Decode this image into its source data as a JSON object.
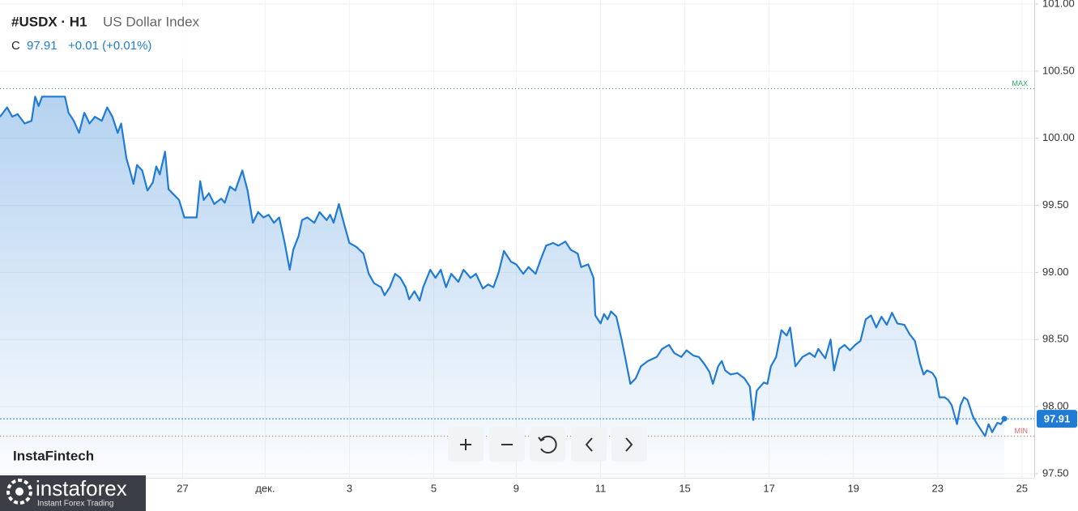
{
  "chart_data": {
    "type": "area",
    "symbol": "#USDX · H1",
    "title": "US Dollar Index",
    "close_label": "C",
    "close": 97.91,
    "change": "+0.01 (+0.01%)",
    "max_line": {
      "value": 100.37,
      "label": "MAX"
    },
    "min_line": {
      "value": 97.78,
      "label": "MIN"
    },
    "watermark": "InstaFintech",
    "logo": {
      "name": "instaforex",
      "tagline": "Instant Forex Trading"
    },
    "color": "#1f7bd3",
    "grid": true,
    "xlim": [
      0,
      589
    ],
    "ylim": [
      97.47,
      101.03
    ],
    "yticks": [
      {
        "value": 97.5,
        "label": "97.50"
      },
      {
        "value": 98,
        "label": "98.00"
      },
      {
        "value": 98.5,
        "label": "98.50"
      },
      {
        "value": 99,
        "label": "99.00"
      },
      {
        "value": 99.5,
        "label": "99.50"
      },
      {
        "value": 100,
        "label": "100.00"
      },
      {
        "value": 100.5,
        "label": "100.50"
      },
      {
        "value": 101,
        "label": "101.00"
      }
    ],
    "xticks": [
      {
        "value": 104,
        "label": "27"
      },
      {
        "value": 151,
        "label": "дек."
      },
      {
        "value": 199,
        "label": "3"
      },
      {
        "value": 247,
        "label": "5"
      },
      {
        "value": 294,
        "label": "9"
      },
      {
        "value": 342,
        "label": "11"
      },
      {
        "value": 390,
        "label": "15"
      },
      {
        "value": 438,
        "label": "17"
      },
      {
        "value": 486,
        "label": "19"
      },
      {
        "value": 534,
        "label": "23"
      },
      {
        "value": 582,
        "label": "25"
      }
    ],
    "x": [
      0,
      4,
      7,
      10,
      14,
      18,
      20,
      22,
      24,
      37,
      39,
      42,
      45,
      48,
      51,
      54,
      58,
      61,
      64,
      67,
      69,
      72,
      74,
      76,
      78,
      81,
      84,
      87,
      89,
      91,
      94,
      96,
      99,
      102,
      105,
      112,
      114,
      116,
      119,
      122,
      126,
      128,
      131,
      134,
      138,
      141,
      144,
      147,
      150,
      153,
      156,
      159,
      162,
      165,
      167,
      170,
      172,
      175,
      179,
      182,
      186,
      188,
      190,
      193,
      196,
      199,
      203,
      207,
      210,
      213,
      217,
      219,
      222,
      225,
      228,
      231,
      233,
      236,
      239,
      241,
      245,
      248,
      251,
      254,
      257,
      261,
      264,
      268,
      271,
      275,
      278,
      281,
      284,
      287,
      291,
      294,
      298,
      301,
      305,
      308,
      311,
      315,
      318,
      322,
      325,
      329,
      331,
      335,
      338,
      339,
      342,
      344,
      346,
      348,
      351,
      354,
      356,
      359,
      362,
      365,
      369,
      374,
      377,
      381,
      384,
      388,
      391,
      395,
      398,
      401,
      404,
      406,
      409,
      411,
      413,
      416,
      420,
      424,
      427,
      429,
      431,
      435,
      437,
      439,
      442,
      445,
      448,
      450,
      453,
      457,
      461,
      464,
      466,
      470,
      473,
      475,
      478,
      481,
      484,
      487,
      490,
      493,
      496,
      499,
      502,
      505,
      508,
      511,
      515,
      518,
      521,
      524,
      526,
      528,
      531,
      533,
      535,
      538,
      540,
      542,
      545,
      547,
      549,
      551,
      554,
      556,
      558,
      561,
      563,
      565,
      568,
      570,
      572
    ],
    "series": [
      {
        "name": "#USDX",
        "values": [
          100.16,
          100.23,
          100.16,
          100.18,
          100.11,
          100.13,
          100.31,
          100.24,
          100.31,
          100.31,
          100.19,
          100.13,
          100.04,
          100.19,
          100.11,
          100.16,
          100.13,
          100.23,
          100.16,
          100.04,
          100.11,
          99.85,
          99.76,
          99.66,
          99.8,
          99.76,
          99.61,
          99.67,
          99.79,
          99.73,
          99.9,
          99.62,
          99.58,
          99.54,
          99.41,
          99.41,
          99.68,
          99.54,
          99.59,
          99.51,
          99.55,
          99.52,
          99.64,
          99.61,
          99.76,
          99.61,
          99.37,
          99.45,
          99.41,
          99.43,
          99.37,
          99.41,
          99.23,
          99.02,
          99.17,
          99.27,
          99.39,
          99.41,
          99.37,
          99.45,
          99.39,
          99.43,
          99.37,
          99.51,
          99.36,
          99.22,
          99.19,
          99.14,
          98.99,
          98.92,
          98.89,
          98.83,
          98.89,
          98.99,
          98.96,
          98.89,
          98.8,
          98.86,
          98.79,
          98.89,
          99.02,
          98.96,
          99.02,
          98.89,
          98.99,
          98.93,
          99.02,
          98.96,
          98.99,
          98.88,
          98.91,
          98.89,
          99.0,
          99.16,
          99.08,
          99.06,
          98.99,
          99.04,
          98.99,
          99.1,
          99.2,
          99.22,
          99.2,
          99.23,
          99.17,
          99.14,
          99.04,
          99.06,
          98.96,
          98.68,
          98.62,
          98.69,
          98.65,
          98.71,
          98.67,
          98.5,
          98.37,
          98.17,
          98.21,
          98.3,
          98.34,
          98.37,
          98.43,
          98.46,
          98.4,
          98.37,
          98.42,
          98.38,
          98.37,
          98.32,
          98.26,
          98.17,
          98.3,
          98.34,
          98.27,
          98.24,
          98.25,
          98.21,
          98.15,
          97.9,
          98.12,
          98.18,
          98.17,
          98.3,
          98.37,
          98.57,
          98.53,
          98.59,
          98.3,
          98.37,
          98.4,
          98.37,
          98.43,
          98.36,
          98.5,
          98.27,
          98.43,
          98.46,
          98.42,
          98.46,
          98.49,
          98.65,
          98.68,
          98.59,
          98.67,
          98.61,
          98.7,
          98.62,
          98.61,
          98.54,
          98.49,
          98.32,
          98.24,
          98.27,
          98.25,
          98.21,
          98.07,
          98.07,
          98.05,
          98.01,
          97.87,
          98.01,
          98.07,
          98.05,
          97.93,
          97.88,
          97.84,
          97.78,
          97.87,
          97.81,
          97.88,
          97.87,
          97.91
        ]
      }
    ]
  }
}
